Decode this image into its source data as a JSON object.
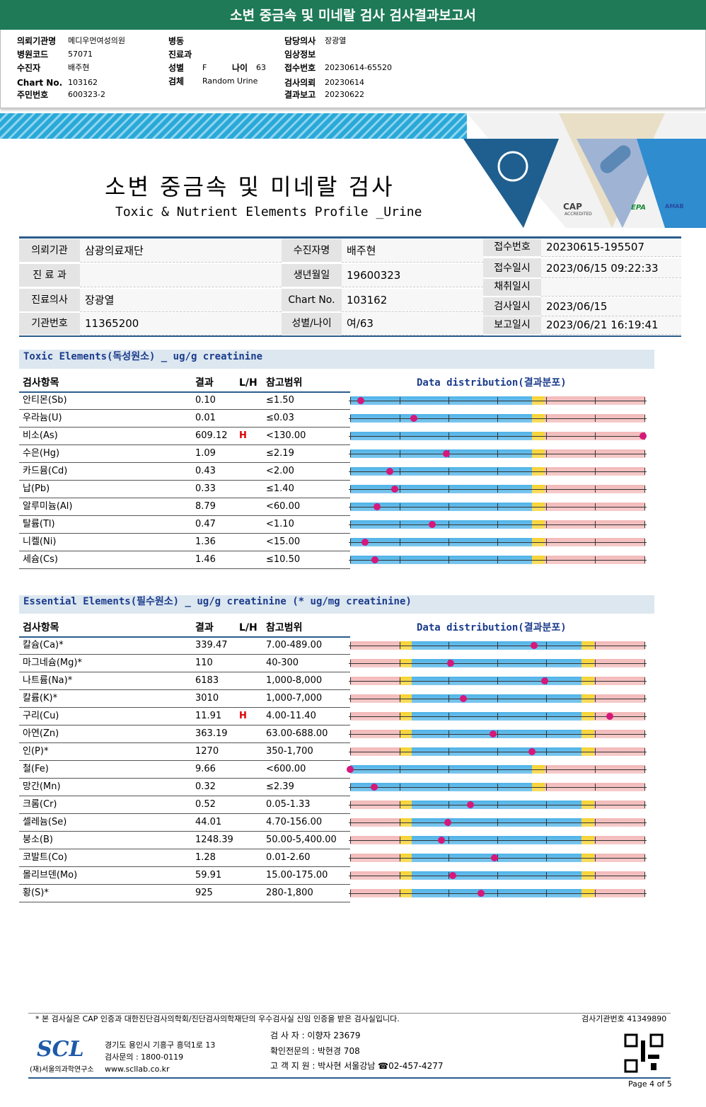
{
  "header": {
    "title": "소변 중금속 및 미네랄 검사 검사결과보고서"
  },
  "order_info": [
    {
      "label": "의뢰기관명",
      "value": "메디우먼여성의원"
    },
    {
      "label": "병원코드",
      "value": "57071"
    },
    {
      "label": "수진자",
      "value": "배주현"
    },
    {
      "label": "Chart No.",
      "value": "103162"
    },
    {
      "label": "주민번호",
      "value": "600323-2"
    },
    {
      "label": "병동"
    },
    {
      "label": "진료과"
    },
    {
      "label": "성별",
      "value": "F"
    },
    {
      "label": "검체",
      "value": "Random Urine"
    },
    {
      "label": "나이",
      "value": "63"
    },
    {
      "label": "담당의사",
      "value": "장광열"
    },
    {
      "label": "임상정보"
    },
    {
      "label": "접수번호",
      "value": "20230614-65520"
    },
    {
      "label": "검사의뢰",
      "value": "20230614"
    },
    {
      "label": "결과보고",
      "value": "20230622"
    }
  ],
  "banner": {
    "title": "소변 중금속 및 미네랄 검사",
    "subtitle": "Toxic & Nutrient Elements Profile _Urine",
    "cap": "CAP",
    "cap_sub": "ACCREDITED",
    "epa": "EPA",
    "amab": "AMAB"
  },
  "patient": [
    {
      "label": "의뢰기관",
      "value": "삼광의료재단"
    },
    {
      "label": "진 료 과"
    },
    {
      "label": "진료의사",
      "value": "장광열"
    },
    {
      "label": "기관번호",
      "value": "11365200"
    },
    {
      "label": "수진자명",
      "value": "배주현"
    },
    {
      "label": "생년월일",
      "value": "19600323"
    },
    {
      "label": "Chart No.",
      "value": "103162"
    },
    {
      "label": "성별/나이",
      "value": "여/63"
    },
    {
      "label": "접수번호",
      "value": "20230615-195507"
    },
    {
      "label": "접수일시",
      "value": "2023/06/15 09:22:33"
    },
    {
      "label": "채취일시"
    },
    {
      "label": "검사일시",
      "value": "2023/06/15"
    },
    {
      "label": "보고일시",
      "value": "2023/06/21 16:19:41"
    }
  ],
  "toxic": {
    "title": "Toxic Elements(독성원소) _ ug/g creatinine",
    "columns": [
      "검사항목",
      "결과",
      "L/H",
      "참고범위",
      "Data distribution(결과분포)"
    ],
    "rows": [
      {
        "name": "안티몬(Sb)",
        "result": "0.10",
        "ref": "≤1.50"
      },
      {
        "name": "우라늄(U)",
        "result": "0.01",
        "ref": "≤0.03"
      },
      {
        "name": "비소(As)",
        "result": "609.12",
        "flag": "H",
        "ref": "<130.00"
      },
      {
        "name": "수은(Hg)",
        "result": "1.09",
        "ref": "≤2.19"
      },
      {
        "name": "카드뮴(Cd)",
        "result": "0.43",
        "ref": "<2.00"
      },
      {
        "name": "납(Pb)",
        "result": "0.33",
        "ref": "≤1.40"
      },
      {
        "name": "알루미늄(Al)",
        "result": "8.79",
        "ref": "<60.00"
      },
      {
        "name": "탈륨(Tl)",
        "result": "0.47",
        "ref": "<1.10"
      },
      {
        "name": "니켈(Ni)",
        "result": "1.36",
        "ref": "<15.00"
      },
      {
        "name": "세슘(Cs)",
        "result": "1.46",
        "ref": "≤10.50"
      }
    ]
  },
  "essential": {
    "title": "Essential Elements(필수원소) _ ug/g creatinine (* ug/mg creatinine)",
    "columns": [
      "검사항목",
      "결과",
      "L/H",
      "참고범위",
      "Data distribution(결과분포)"
    ],
    "rows": [
      {
        "name": "칼슘(Ca)*",
        "result": "339.47",
        "ref": "7.00-489.00"
      },
      {
        "name": "마그네슘(Mg)*",
        "result": "110",
        "ref": "40-300"
      },
      {
        "name": "나트륨(Na)*",
        "result": "6183",
        "ref": "1,000-8,000"
      },
      {
        "name": "칼륨(K)*",
        "result": "3010",
        "ref": "1,000-7,000"
      },
      {
        "name": "구리(Cu)",
        "result": "11.91",
        "flag": "H",
        "ref": "4.00-11.40"
      },
      {
        "name": "아연(Zn)",
        "result": "363.19",
        "ref": "63.00-688.00"
      },
      {
        "name": "인(P)*",
        "result": "1270",
        "ref": "350-1,700"
      },
      {
        "name": "철(Fe)",
        "result": "9.66",
        "ref": "<600.00"
      },
      {
        "name": "망간(Mn)",
        "result": "0.32",
        "ref": "≤2.39"
      },
      {
        "name": "크롬(Cr)",
        "result": "0.52",
        "ref": "0.05-1.33"
      },
      {
        "name": "셀레늄(Se)",
        "result": "44.01",
        "ref": "4.70-156.00"
      },
      {
        "name": "붕소(B)",
        "result": "1248.39",
        "ref": "50.00-5,400.00"
      },
      {
        "name": "코발트(Co)",
        "result": "1.28",
        "ref": "0.01-2.60"
      },
      {
        "name": "몰리브덴(Mo)",
        "result": "59.91",
        "ref": "15.00-175.00"
      },
      {
        "name": "황(S)*",
        "result": "925",
        "ref": "280-1,800"
      }
    ]
  },
  "footer": {
    "note": "* 본 검사실은 CAP 인증과 대한진단검사의학회/진단검사의학재단의 우수검사실 신임 인증을 받은 검사실입니다.",
    "lab_no": "검사기관번호 41349890",
    "logo": "SCL",
    "org": "(재)서울의과학연구소",
    "address": "경기도 용인시 기흥구 흥덕1로 13",
    "phone": "검사문의 : 1800-0119",
    "web": "www.scllab.co.kr",
    "tester": "검 사 자 : 이향자 23679",
    "doctor": "확인전문의 : 박현경 708",
    "support": "고 객 지 원 : 박사현 서울강남 ☎02-457-4277",
    "page": "Page 4 of 5"
  }
}
